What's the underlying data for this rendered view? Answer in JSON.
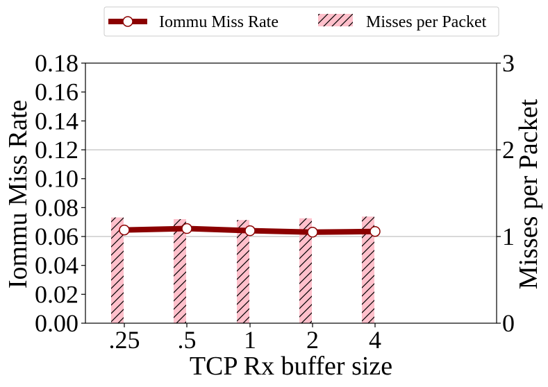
{
  "chart_data": {
    "type": "bar+line",
    "xlabel": "TCP Rx buffer size",
    "categories": [
      ".25",
      ".5",
      "1",
      "2",
      "4"
    ],
    "left_axis": {
      "label": "Iommu Miss Rate",
      "ylim": [
        0,
        0.18
      ],
      "ticks": [
        "0.00",
        "0.02",
        "0.04",
        "0.06",
        "0.08",
        "0.10",
        "0.12",
        "0.14",
        "0.16",
        "0.18"
      ]
    },
    "right_axis": {
      "label": "Misses per Packet",
      "ylim": [
        0,
        3
      ],
      "ticks": [
        "0",
        "1",
        "2",
        "3"
      ]
    },
    "series": [
      {
        "name": "Iommu Miss Rate",
        "kind": "line",
        "axis": "left",
        "color": "#8b0000",
        "marker_fill": "#ffffff",
        "values": [
          0.0645,
          0.0655,
          0.064,
          0.063,
          0.0635
        ]
      },
      {
        "name": "Misses per Packet",
        "kind": "bar",
        "axis": "right",
        "color": "#ffc0cb",
        "hatch": "diagonal",
        "values": [
          1.22,
          1.2,
          1.19,
          1.21,
          1.23
        ]
      }
    ],
    "grid": "horizontal (right axis major ticks)",
    "legend_position": "top-center"
  }
}
